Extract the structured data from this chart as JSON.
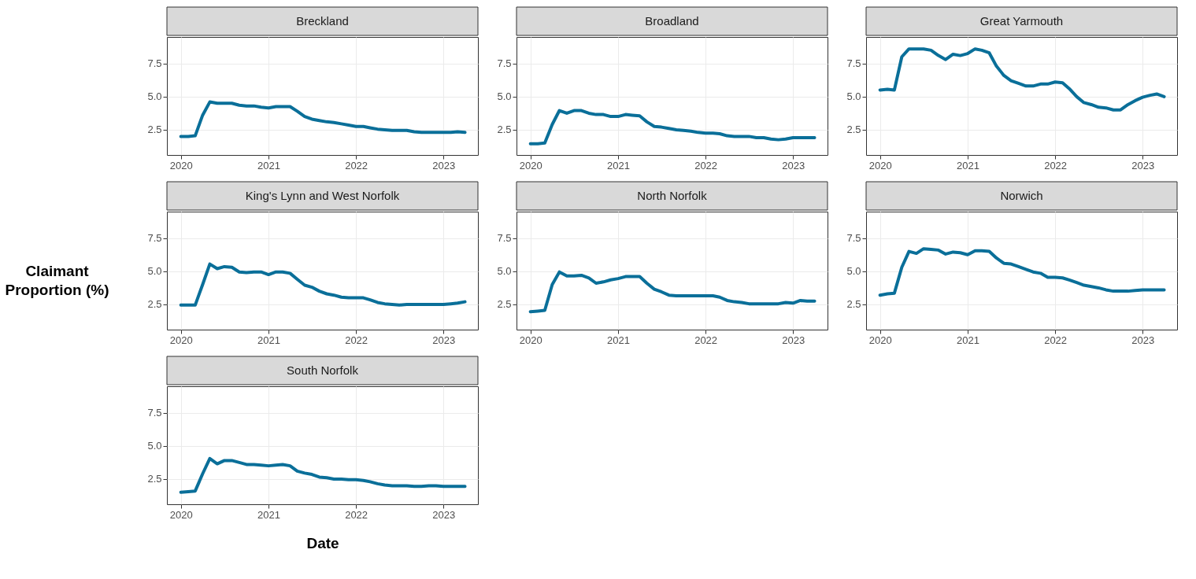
{
  "chart_data": [
    {
      "type": "line",
      "title": "Breckland",
      "x": [
        "2020-01",
        "2020-02",
        "2020-03",
        "2020-04",
        "2020-05",
        "2020-06",
        "2020-07",
        "2020-08",
        "2020-09",
        "2020-10",
        "2020-11",
        "2020-12",
        "2021-01",
        "2021-02",
        "2021-03",
        "2021-04",
        "2021-05",
        "2021-06",
        "2021-07",
        "2021-08",
        "2021-09",
        "2021-10",
        "2021-11",
        "2021-12",
        "2022-01",
        "2022-02",
        "2022-03",
        "2022-04",
        "2022-05",
        "2022-06",
        "2022-07",
        "2022-08",
        "2022-09",
        "2022-10",
        "2022-11",
        "2022-12",
        "2023-01",
        "2023-02",
        "2023-03",
        "2023-04"
      ],
      "series": [
        {
          "color": "#0a6f99",
          "values": [
            2.0,
            2.0,
            2.05,
            3.6,
            4.6,
            4.5,
            4.5,
            4.5,
            4.35,
            4.3,
            4.3,
            4.2,
            4.15,
            4.25,
            4.25,
            4.25,
            3.9,
            3.5,
            3.3,
            3.2,
            3.1,
            3.05,
            2.95,
            2.85,
            2.75,
            2.75,
            2.65,
            2.55,
            2.5,
            2.45,
            2.45,
            2.45,
            2.35,
            2.3,
            2.3,
            2.3,
            2.3,
            2.3,
            2.35,
            2.3
          ]
        }
      ],
      "xlim": [
        "2019-11-04",
        "2023-05-25"
      ],
      "xticks": [
        "2020",
        "2021",
        "2022",
        "2023"
      ],
      "ylim": [
        0.6,
        9.5
      ],
      "yticks": [
        {
          "value": 2.5,
          "label": "2.5"
        },
        {
          "value": 5,
          "label": "5.0"
        },
        {
          "value": 7.5,
          "label": "7.5"
        }
      ],
      "grid": true,
      "line_style": "solid",
      "marker": "none"
    },
    {
      "type": "line",
      "title": "Broadland",
      "x": [
        "2020-01",
        "2020-02",
        "2020-03",
        "2020-04",
        "2020-05",
        "2020-06",
        "2020-07",
        "2020-08",
        "2020-09",
        "2020-10",
        "2020-11",
        "2020-12",
        "2021-01",
        "2021-02",
        "2021-03",
        "2021-04",
        "2021-05",
        "2021-06",
        "2021-07",
        "2021-08",
        "2021-09",
        "2021-10",
        "2021-11",
        "2021-12",
        "2022-01",
        "2022-02",
        "2022-03",
        "2022-04",
        "2022-05",
        "2022-06",
        "2022-07",
        "2022-08",
        "2022-09",
        "2022-10",
        "2022-11",
        "2022-12",
        "2023-01",
        "2023-02",
        "2023-03",
        "2023-04"
      ],
      "series": [
        {
          "color": "#0a6f99",
          "values": [
            1.45,
            1.45,
            1.5,
            2.9,
            3.95,
            3.75,
            3.95,
            3.95,
            3.75,
            3.65,
            3.65,
            3.5,
            3.5,
            3.65,
            3.6,
            3.55,
            3.1,
            2.75,
            2.7,
            2.6,
            2.5,
            2.45,
            2.4,
            2.3,
            2.25,
            2.25,
            2.2,
            2.05,
            2.0,
            2.0,
            2.0,
            1.9,
            1.9,
            1.8,
            1.75,
            1.8,
            1.9,
            1.9,
            1.9,
            1.9
          ]
        }
      ],
      "xlim": [
        "2019-11-04",
        "2023-05-25"
      ],
      "xticks": [
        "2020",
        "2021",
        "2022",
        "2023"
      ],
      "ylim": [
        0.6,
        9.5
      ],
      "yticks": [
        {
          "value": 2.5,
          "label": "2.5"
        },
        {
          "value": 5,
          "label": "5.0"
        },
        {
          "value": 7.5,
          "label": "7.5"
        }
      ],
      "grid": true,
      "line_style": "solid",
      "marker": "none"
    },
    {
      "type": "line",
      "title": "Great Yarmouth",
      "x": [
        "2020-01",
        "2020-02",
        "2020-03",
        "2020-04",
        "2020-05",
        "2020-06",
        "2020-07",
        "2020-08",
        "2020-09",
        "2020-10",
        "2020-11",
        "2020-12",
        "2021-01",
        "2021-02",
        "2021-03",
        "2021-04",
        "2021-05",
        "2021-06",
        "2021-07",
        "2021-08",
        "2021-09",
        "2021-10",
        "2021-11",
        "2021-12",
        "2022-01",
        "2022-02",
        "2022-03",
        "2022-04",
        "2022-05",
        "2022-06",
        "2022-07",
        "2022-08",
        "2022-09",
        "2022-10",
        "2022-11",
        "2022-12",
        "2023-01",
        "2023-02",
        "2023-03",
        "2023-04"
      ],
      "series": [
        {
          "color": "#0a6f99",
          "values": [
            5.5,
            5.55,
            5.5,
            8.0,
            8.6,
            8.6,
            8.6,
            8.5,
            8.1,
            7.8,
            8.2,
            8.1,
            8.25,
            8.6,
            8.5,
            8.3,
            7.3,
            6.6,
            6.2,
            6.0,
            5.8,
            5.8,
            5.95,
            5.95,
            6.1,
            6.05,
            5.6,
            5.0,
            4.55,
            4.4,
            4.2,
            4.15,
            4.0,
            4.0,
            4.4,
            4.7,
            4.95,
            5.1,
            5.2,
            5.0
          ]
        }
      ],
      "xlim": [
        "2019-11-04",
        "2023-05-25"
      ],
      "xticks": [
        "2020",
        "2021",
        "2022",
        "2023"
      ],
      "ylim": [
        0.6,
        9.5
      ],
      "yticks": [
        {
          "value": 2.5,
          "label": "2.5"
        },
        {
          "value": 5,
          "label": "5.0"
        },
        {
          "value": 7.5,
          "label": "7.5"
        }
      ],
      "grid": true,
      "line_style": "solid",
      "marker": "none"
    },
    {
      "type": "line",
      "title": "King's Lynn and West Norfolk",
      "ylabel": "Claimant Proportion (%)",
      "x": [
        "2020-01",
        "2020-02",
        "2020-03",
        "2020-04",
        "2020-05",
        "2020-06",
        "2020-07",
        "2020-08",
        "2020-09",
        "2020-10",
        "2020-11",
        "2020-12",
        "2021-01",
        "2021-02",
        "2021-03",
        "2021-04",
        "2021-05",
        "2021-06",
        "2021-07",
        "2021-08",
        "2021-09",
        "2021-10",
        "2021-11",
        "2021-12",
        "2022-01",
        "2022-02",
        "2022-03",
        "2022-04",
        "2022-05",
        "2022-06",
        "2022-07",
        "2022-08",
        "2022-09",
        "2022-10",
        "2022-11",
        "2022-12",
        "2023-01",
        "2023-02",
        "2023-03",
        "2023-04"
      ],
      "series": [
        {
          "color": "#0a6f99",
          "values": [
            2.45,
            2.45,
            2.45,
            4.0,
            5.55,
            5.2,
            5.35,
            5.3,
            4.95,
            4.9,
            4.95,
            4.95,
            4.75,
            4.95,
            4.95,
            4.85,
            4.4,
            3.95,
            3.8,
            3.5,
            3.3,
            3.2,
            3.05,
            3.0,
            3.0,
            3.0,
            2.85,
            2.65,
            2.55,
            2.5,
            2.45,
            2.5,
            2.5,
            2.5,
            2.5,
            2.5,
            2.5,
            2.55,
            2.6,
            2.7
          ]
        }
      ],
      "xlim": [
        "2019-11-04",
        "2023-05-25"
      ],
      "xticks": [
        "2020",
        "2021",
        "2022",
        "2023"
      ],
      "ylim": [
        0.6,
        9.5
      ],
      "yticks": [
        {
          "value": 2.5,
          "label": "2.5"
        },
        {
          "value": 5,
          "label": "5.0"
        },
        {
          "value": 7.5,
          "label": "7.5"
        }
      ],
      "grid": true,
      "line_style": "solid",
      "marker": "none"
    },
    {
      "type": "line",
      "title": "North Norfolk",
      "x": [
        "2020-01",
        "2020-02",
        "2020-03",
        "2020-04",
        "2020-05",
        "2020-06",
        "2020-07",
        "2020-08",
        "2020-09",
        "2020-10",
        "2020-11",
        "2020-12",
        "2021-01",
        "2021-02",
        "2021-03",
        "2021-04",
        "2021-05",
        "2021-06",
        "2021-07",
        "2021-08",
        "2021-09",
        "2021-10",
        "2021-11",
        "2021-12",
        "2022-01",
        "2022-02",
        "2022-03",
        "2022-04",
        "2022-05",
        "2022-06",
        "2022-07",
        "2022-08",
        "2022-09",
        "2022-10",
        "2022-11",
        "2022-12",
        "2023-01",
        "2023-02",
        "2023-03",
        "2023-04"
      ],
      "series": [
        {
          "color": "#0a6f99",
          "values": [
            1.95,
            2.0,
            2.05,
            4.0,
            4.95,
            4.65,
            4.65,
            4.7,
            4.5,
            4.1,
            4.2,
            4.35,
            4.45,
            4.6,
            4.6,
            4.6,
            4.1,
            3.65,
            3.45,
            3.2,
            3.15,
            3.15,
            3.15,
            3.15,
            3.15,
            3.15,
            3.05,
            2.8,
            2.7,
            2.65,
            2.55,
            2.55,
            2.55,
            2.55,
            2.55,
            2.65,
            2.6,
            2.8,
            2.75,
            2.75
          ]
        }
      ],
      "xlim": [
        "2019-11-04",
        "2023-05-25"
      ],
      "xticks": [
        "2020",
        "2021",
        "2022",
        "2023"
      ],
      "ylim": [
        0.6,
        9.5
      ],
      "yticks": [
        {
          "value": 2.5,
          "label": "2.5"
        },
        {
          "value": 5,
          "label": "5.0"
        },
        {
          "value": 7.5,
          "label": "7.5"
        }
      ],
      "grid": true,
      "line_style": "solid",
      "marker": "none"
    },
    {
      "type": "line",
      "title": "Norwich",
      "x": [
        "2020-01",
        "2020-02",
        "2020-03",
        "2020-04",
        "2020-05",
        "2020-06",
        "2020-07",
        "2020-08",
        "2020-09",
        "2020-10",
        "2020-11",
        "2020-12",
        "2021-01",
        "2021-02",
        "2021-03",
        "2021-04",
        "2021-05",
        "2021-06",
        "2021-07",
        "2021-08",
        "2021-09",
        "2021-10",
        "2021-11",
        "2021-12",
        "2022-01",
        "2022-02",
        "2022-03",
        "2022-04",
        "2022-05",
        "2022-06",
        "2022-07",
        "2022-08",
        "2022-09",
        "2022-10",
        "2022-11",
        "2022-12",
        "2023-01",
        "2023-02",
        "2023-03",
        "2023-04"
      ],
      "series": [
        {
          "color": "#0a6f99",
          "values": [
            3.2,
            3.3,
            3.35,
            5.3,
            6.5,
            6.35,
            6.7,
            6.65,
            6.6,
            6.3,
            6.45,
            6.4,
            6.25,
            6.55,
            6.55,
            6.5,
            6.0,
            5.6,
            5.55,
            5.35,
            5.15,
            4.95,
            4.85,
            4.55,
            4.55,
            4.5,
            4.35,
            4.15,
            3.95,
            3.85,
            3.75,
            3.6,
            3.5,
            3.5,
            3.5,
            3.55,
            3.6,
            3.6,
            3.6,
            3.6
          ]
        }
      ],
      "xlim": [
        "2019-11-04",
        "2023-05-25"
      ],
      "xticks": [
        "2020",
        "2021",
        "2022",
        "2023"
      ],
      "ylim": [
        0.6,
        9.5
      ],
      "yticks": [
        {
          "value": 2.5,
          "label": "2.5"
        },
        {
          "value": 5,
          "label": "5.0"
        },
        {
          "value": 7.5,
          "label": "7.5"
        }
      ],
      "grid": true,
      "line_style": "solid",
      "marker": "none"
    },
    {
      "type": "line",
      "title": "South Norfolk",
      "xlabel": "Date",
      "x": [
        "2020-01",
        "2020-02",
        "2020-03",
        "2020-04",
        "2020-05",
        "2020-06",
        "2020-07",
        "2020-08",
        "2020-09",
        "2020-10",
        "2020-11",
        "2020-12",
        "2021-01",
        "2021-02",
        "2021-03",
        "2021-04",
        "2021-05",
        "2021-06",
        "2021-07",
        "2021-08",
        "2021-09",
        "2021-10",
        "2021-11",
        "2021-12",
        "2022-01",
        "2022-02",
        "2022-03",
        "2022-04",
        "2022-05",
        "2022-06",
        "2022-07",
        "2022-08",
        "2022-09",
        "2022-10",
        "2022-11",
        "2022-12",
        "2023-01",
        "2023-02",
        "2023-03",
        "2023-04"
      ],
      "series": [
        {
          "color": "#0a6f99",
          "values": [
            1.5,
            1.55,
            1.6,
            2.9,
            4.05,
            3.65,
            3.9,
            3.9,
            3.75,
            3.6,
            3.6,
            3.55,
            3.5,
            3.55,
            3.6,
            3.5,
            3.1,
            2.95,
            2.85,
            2.65,
            2.6,
            2.5,
            2.5,
            2.45,
            2.45,
            2.4,
            2.3,
            2.15,
            2.05,
            2.0,
            2.0,
            2.0,
            1.95,
            1.95,
            2.0,
            2.0,
            1.95,
            1.95,
            1.95,
            1.95
          ]
        }
      ],
      "xlim": [
        "2019-11-04",
        "2023-05-25"
      ],
      "xticks": [
        "2020",
        "2021",
        "2022",
        "2023"
      ],
      "ylim": [
        0.6,
        9.5
      ],
      "yticks": [
        {
          "value": 2.5,
          "label": "2.5"
        },
        {
          "value": 5,
          "label": "5.0"
        },
        {
          "value": 7.5,
          "label": "7.5"
        }
      ],
      "grid": true,
      "line_style": "solid",
      "marker": "none"
    }
  ]
}
